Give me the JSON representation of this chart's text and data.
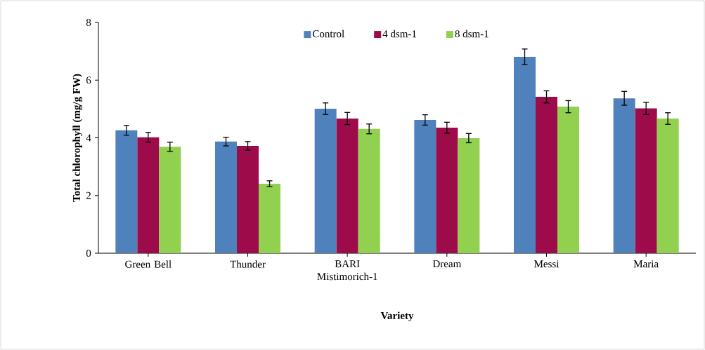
{
  "chart_data": {
    "type": "bar",
    "xlabel": "Variety",
    "ylabel": "Total chlorophyll (mg/g FW)",
    "categories": [
      "Green Bell",
      "Thunder",
      "BARI Mistimorich-1",
      "Dream",
      "Messi",
      "Maria"
    ],
    "series": [
      {
        "name": "Control",
        "color": "#4f81bd",
        "values": [
          4.26,
          3.87,
          5.01,
          4.62,
          6.81,
          5.37
        ],
        "errors": [
          0.17,
          0.15,
          0.2,
          0.18,
          0.27,
          0.24
        ]
      },
      {
        "name": "4 dsm-1",
        "color": "#9e0b4a",
        "values": [
          4.02,
          3.72,
          4.67,
          4.35,
          5.42,
          5.02
        ],
        "errors": [
          0.17,
          0.15,
          0.21,
          0.19,
          0.21,
          0.21
        ]
      },
      {
        "name": "8 dsm-1",
        "color": "#92d050",
        "values": [
          3.69,
          2.41,
          4.31,
          3.99,
          5.08,
          4.67
        ],
        "errors": [
          0.16,
          0.1,
          0.17,
          0.16,
          0.21,
          0.2
        ]
      }
    ],
    "ylim": [
      0,
      8
    ],
    "yticks": [
      0,
      2,
      4,
      6,
      8
    ],
    "legend": "top"
  }
}
